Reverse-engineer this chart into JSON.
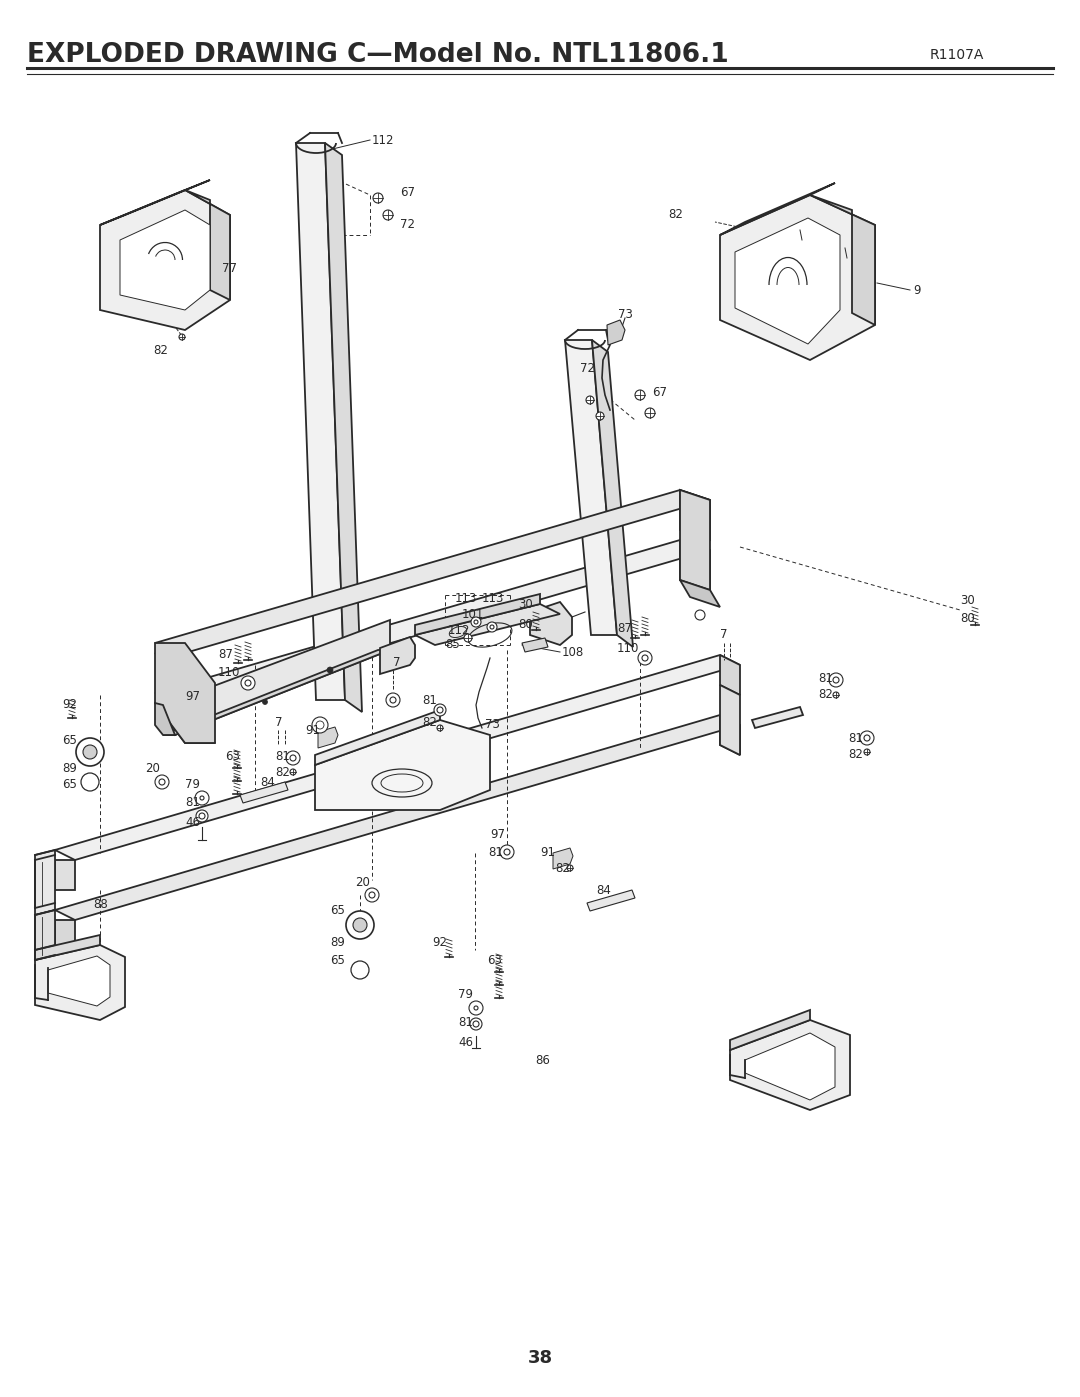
{
  "title": "EXPLODED DRAWING C—Model No. NTL11806.1",
  "title_right": "R1107A",
  "page_number": "38",
  "background_color": "#ffffff",
  "line_color": "#2a2a2a",
  "text_color": "#2a2a2a",
  "title_fontsize": 19,
  "label_fontsize": 8.5,
  "page_num_fontsize": 13
}
